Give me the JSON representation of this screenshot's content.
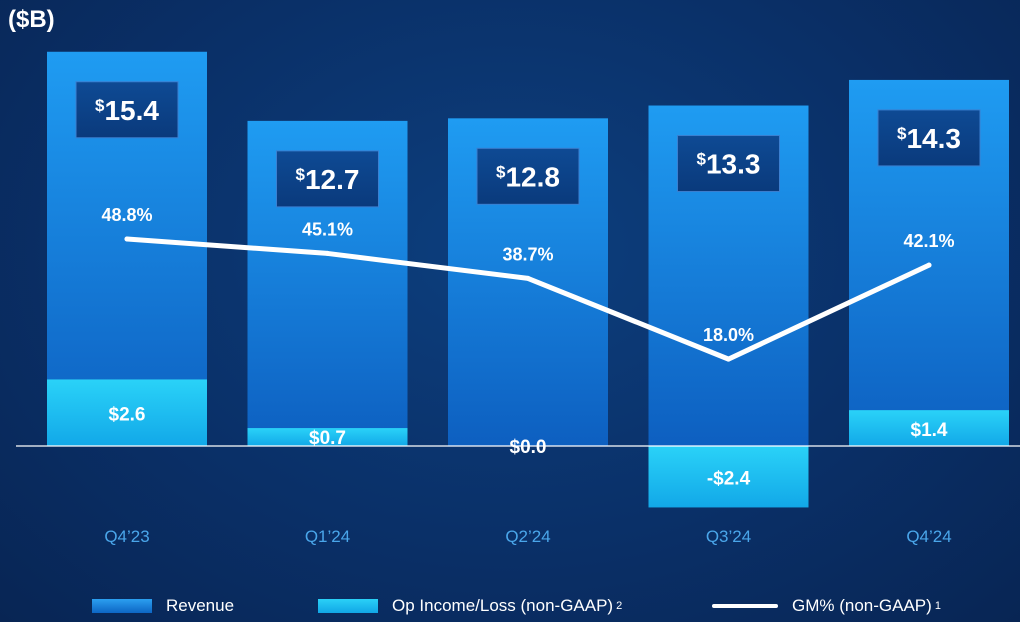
{
  "unit_label": "($B)",
  "chart_data": {
    "type": "bar",
    "categories": [
      "Q4’23",
      "Q1’24",
      "Q2’24",
      "Q3’24",
      "Q4’24"
    ],
    "series": [
      {
        "name": "Revenue",
        "type": "bar",
        "values": [
          15.4,
          12.7,
          12.8,
          13.3,
          14.3
        ],
        "labels": [
          "$15.4",
          "$12.7",
          "$12.8",
          "$13.3",
          "$14.3"
        ],
        "color": "#1a86e0"
      },
      {
        "name": "Op Income/Loss (non-GAAP)",
        "type": "bar",
        "values": [
          2.6,
          0.7,
          0.0,
          -2.4,
          1.4
        ],
        "labels": [
          "$2.6",
          "$0.7",
          "$0.0",
          "-$2.4",
          "$1.4"
        ],
        "color": "#22c3f3"
      },
      {
        "name": "GM% (non-GAAP)",
        "type": "line",
        "values": [
          48.8,
          45.1,
          38.7,
          18.0,
          42.1
        ],
        "labels": [
          "48.8%",
          "45.1%",
          "38.7%",
          "18.0%",
          "42.1%"
        ],
        "color": "#ffffff"
      }
    ],
    "ylabel": "($B)",
    "legend_position": "bottom",
    "grid": false
  },
  "legend": [
    {
      "label": "Revenue",
      "note": ""
    },
    {
      "label": "Op Income/Loss (non-GAAP)",
      "note": "2"
    },
    {
      "label": "GM% (non-GAAP)",
      "note": "1"
    }
  ]
}
